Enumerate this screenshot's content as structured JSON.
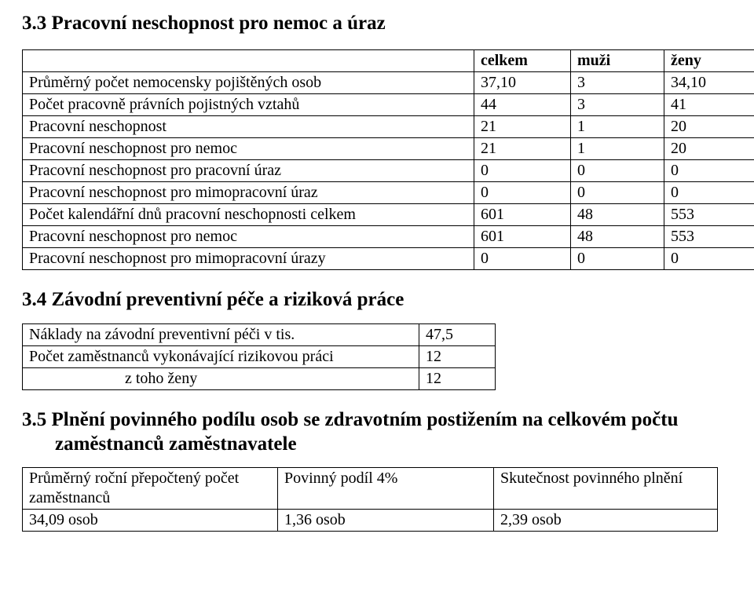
{
  "section33": {
    "heading": "3.3  Pracovní neschopnost pro nemoc a úraz",
    "table": {
      "header": [
        "celkem",
        "muži",
        "ženy"
      ],
      "rows": [
        {
          "label": "Průměrný počet nemocensky pojištěných osob",
          "c": "37,10",
          "m": "3",
          "z": "34,10"
        },
        {
          "label": "Počet pracovně právních pojistných vztahů",
          "c": "44",
          "m": "3",
          "z": "41"
        },
        {
          "label": "Pracovní neschopnost",
          "c": "21",
          "m": "1",
          "z": "20"
        },
        {
          "label": "Pracovní neschopnost pro nemoc",
          "c": "21",
          "m": "1",
          "z": "20"
        },
        {
          "label": "Pracovní neschopnost pro pracovní úraz",
          "c": "0",
          "m": "0",
          "z": "0"
        },
        {
          "label": "Pracovní neschopnost pro mimopracovní úraz",
          "c": "0",
          "m": "0",
          "z": "0"
        },
        {
          "label": "Počet kalendářní dnů pracovní neschopnosti celkem",
          "c": "601",
          "m": "48",
          "z": "553"
        },
        {
          "label": "Pracovní neschopnost pro nemoc",
          "c": "601",
          "m": "48",
          "z": "553"
        },
        {
          "label": "Pracovní neschopnost pro mimopracovní úrazy",
          "c": "0",
          "m": "0",
          "z": "0"
        }
      ]
    }
  },
  "section34": {
    "heading": "3.4  Závodní preventivní péče a riziková práce",
    "rows": [
      {
        "label": "Náklady na závodní preventivní péči v tis.",
        "value": "47,5",
        "indent": false
      },
      {
        "label": "Počet zaměstnanců vykonávající rizikovou práci",
        "value": "12",
        "indent": false
      },
      {
        "label": "z toho ženy",
        "value": "12",
        "indent": true
      }
    ]
  },
  "section35": {
    "heading": "3.5  Plnění povinného podílu osob se zdravotním postižením na celkovém počtu zaměstnanců zaměstnavatele",
    "header": [
      "Průměrný roční přepočtený počet zaměstnanců",
      "Povinný podíl 4%",
      "Skutečnost povinného plnění"
    ],
    "row": [
      "34,09 osob",
      "1,36 osob",
      "2,39 osob"
    ]
  }
}
